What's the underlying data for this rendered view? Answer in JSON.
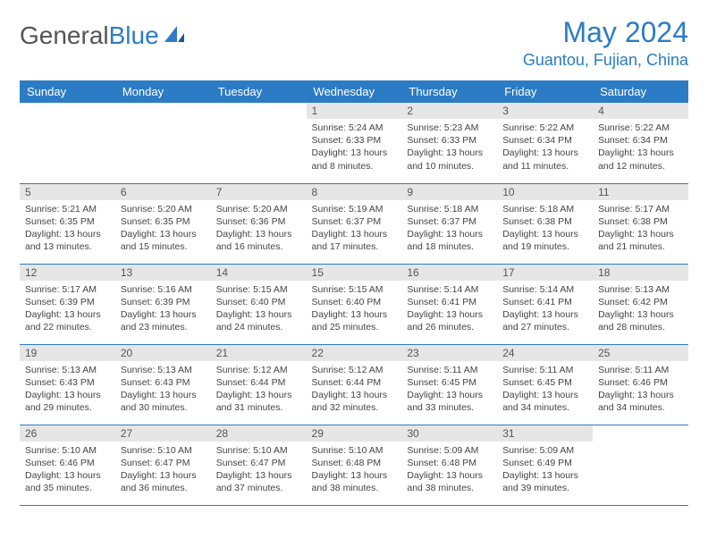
{
  "brand": {
    "general": "General",
    "blue": "Blue"
  },
  "title": "May 2024",
  "location": "Guantou, Fujian, China",
  "colors": {
    "header_bg": "#2b7cc4",
    "header_fg": "#ffffff",
    "daynum_bg": "#e6e6e6",
    "border": "#2b7cc4",
    "brand_gray": "#555555"
  },
  "day_headers": [
    "Sunday",
    "Monday",
    "Tuesday",
    "Wednesday",
    "Thursday",
    "Friday",
    "Saturday"
  ],
  "weeks": [
    [
      {
        "n": "",
        "sr": "",
        "ss": "",
        "dl": ""
      },
      {
        "n": "",
        "sr": "",
        "ss": "",
        "dl": ""
      },
      {
        "n": "",
        "sr": "",
        "ss": "",
        "dl": ""
      },
      {
        "n": "1",
        "sr": "Sunrise: 5:24 AM",
        "ss": "Sunset: 6:33 PM",
        "dl": "Daylight: 13 hours and 8 minutes."
      },
      {
        "n": "2",
        "sr": "Sunrise: 5:23 AM",
        "ss": "Sunset: 6:33 PM",
        "dl": "Daylight: 13 hours and 10 minutes."
      },
      {
        "n": "3",
        "sr": "Sunrise: 5:22 AM",
        "ss": "Sunset: 6:34 PM",
        "dl": "Daylight: 13 hours and 11 minutes."
      },
      {
        "n": "4",
        "sr": "Sunrise: 5:22 AM",
        "ss": "Sunset: 6:34 PM",
        "dl": "Daylight: 13 hours and 12 minutes."
      }
    ],
    [
      {
        "n": "5",
        "sr": "Sunrise: 5:21 AM",
        "ss": "Sunset: 6:35 PM",
        "dl": "Daylight: 13 hours and 13 minutes."
      },
      {
        "n": "6",
        "sr": "Sunrise: 5:20 AM",
        "ss": "Sunset: 6:35 PM",
        "dl": "Daylight: 13 hours and 15 minutes."
      },
      {
        "n": "7",
        "sr": "Sunrise: 5:20 AM",
        "ss": "Sunset: 6:36 PM",
        "dl": "Daylight: 13 hours and 16 minutes."
      },
      {
        "n": "8",
        "sr": "Sunrise: 5:19 AM",
        "ss": "Sunset: 6:37 PM",
        "dl": "Daylight: 13 hours and 17 minutes."
      },
      {
        "n": "9",
        "sr": "Sunrise: 5:18 AM",
        "ss": "Sunset: 6:37 PM",
        "dl": "Daylight: 13 hours and 18 minutes."
      },
      {
        "n": "10",
        "sr": "Sunrise: 5:18 AM",
        "ss": "Sunset: 6:38 PM",
        "dl": "Daylight: 13 hours and 19 minutes."
      },
      {
        "n": "11",
        "sr": "Sunrise: 5:17 AM",
        "ss": "Sunset: 6:38 PM",
        "dl": "Daylight: 13 hours and 21 minutes."
      }
    ],
    [
      {
        "n": "12",
        "sr": "Sunrise: 5:17 AM",
        "ss": "Sunset: 6:39 PM",
        "dl": "Daylight: 13 hours and 22 minutes."
      },
      {
        "n": "13",
        "sr": "Sunrise: 5:16 AM",
        "ss": "Sunset: 6:39 PM",
        "dl": "Daylight: 13 hours and 23 minutes."
      },
      {
        "n": "14",
        "sr": "Sunrise: 5:15 AM",
        "ss": "Sunset: 6:40 PM",
        "dl": "Daylight: 13 hours and 24 minutes."
      },
      {
        "n": "15",
        "sr": "Sunrise: 5:15 AM",
        "ss": "Sunset: 6:40 PM",
        "dl": "Daylight: 13 hours and 25 minutes."
      },
      {
        "n": "16",
        "sr": "Sunrise: 5:14 AM",
        "ss": "Sunset: 6:41 PM",
        "dl": "Daylight: 13 hours and 26 minutes."
      },
      {
        "n": "17",
        "sr": "Sunrise: 5:14 AM",
        "ss": "Sunset: 6:41 PM",
        "dl": "Daylight: 13 hours and 27 minutes."
      },
      {
        "n": "18",
        "sr": "Sunrise: 5:13 AM",
        "ss": "Sunset: 6:42 PM",
        "dl": "Daylight: 13 hours and 28 minutes."
      }
    ],
    [
      {
        "n": "19",
        "sr": "Sunrise: 5:13 AM",
        "ss": "Sunset: 6:43 PM",
        "dl": "Daylight: 13 hours and 29 minutes."
      },
      {
        "n": "20",
        "sr": "Sunrise: 5:13 AM",
        "ss": "Sunset: 6:43 PM",
        "dl": "Daylight: 13 hours and 30 minutes."
      },
      {
        "n": "21",
        "sr": "Sunrise: 5:12 AM",
        "ss": "Sunset: 6:44 PM",
        "dl": "Daylight: 13 hours and 31 minutes."
      },
      {
        "n": "22",
        "sr": "Sunrise: 5:12 AM",
        "ss": "Sunset: 6:44 PM",
        "dl": "Daylight: 13 hours and 32 minutes."
      },
      {
        "n": "23",
        "sr": "Sunrise: 5:11 AM",
        "ss": "Sunset: 6:45 PM",
        "dl": "Daylight: 13 hours and 33 minutes."
      },
      {
        "n": "24",
        "sr": "Sunrise: 5:11 AM",
        "ss": "Sunset: 6:45 PM",
        "dl": "Daylight: 13 hours and 34 minutes."
      },
      {
        "n": "25",
        "sr": "Sunrise: 5:11 AM",
        "ss": "Sunset: 6:46 PM",
        "dl": "Daylight: 13 hours and 34 minutes."
      }
    ],
    [
      {
        "n": "26",
        "sr": "Sunrise: 5:10 AM",
        "ss": "Sunset: 6:46 PM",
        "dl": "Daylight: 13 hours and 35 minutes."
      },
      {
        "n": "27",
        "sr": "Sunrise: 5:10 AM",
        "ss": "Sunset: 6:47 PM",
        "dl": "Daylight: 13 hours and 36 minutes."
      },
      {
        "n": "28",
        "sr": "Sunrise: 5:10 AM",
        "ss": "Sunset: 6:47 PM",
        "dl": "Daylight: 13 hours and 37 minutes."
      },
      {
        "n": "29",
        "sr": "Sunrise: 5:10 AM",
        "ss": "Sunset: 6:48 PM",
        "dl": "Daylight: 13 hours and 38 minutes."
      },
      {
        "n": "30",
        "sr": "Sunrise: 5:09 AM",
        "ss": "Sunset: 6:48 PM",
        "dl": "Daylight: 13 hours and 38 minutes."
      },
      {
        "n": "31",
        "sr": "Sunrise: 5:09 AM",
        "ss": "Sunset: 6:49 PM",
        "dl": "Daylight: 13 hours and 39 minutes."
      },
      {
        "n": "",
        "sr": "",
        "ss": "",
        "dl": ""
      }
    ]
  ]
}
